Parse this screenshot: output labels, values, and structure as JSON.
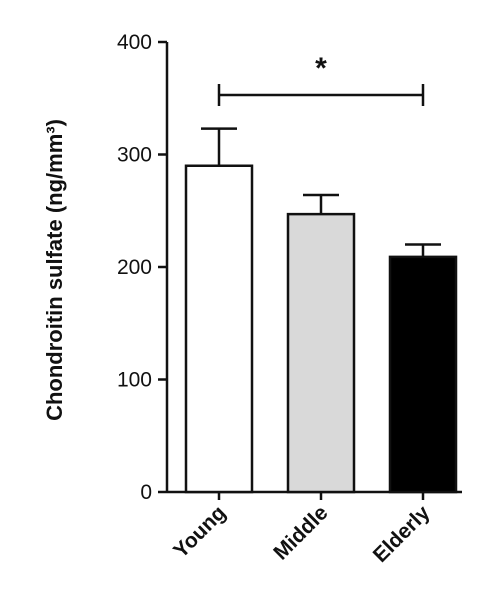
{
  "chart_data": {
    "type": "bar",
    "title": "",
    "xlabel": "",
    "ylabel": "Chondroitin sulfate (ng/mm³)",
    "categories": [
      "Young",
      "Middle",
      "Elderly"
    ],
    "values": [
      290,
      247,
      209
    ],
    "error": [
      33,
      17,
      11
    ],
    "bar_colors": [
      "#ffffff",
      "#d9d9d9",
      "#000000"
    ],
    "ylim": [
      0,
      400
    ],
    "yticks": [
      0,
      100,
      200,
      300,
      400
    ],
    "ytick_labels": [
      "0",
      "100",
      "200",
      "300",
      "400"
    ],
    "grid": false,
    "significance": {
      "from": "Young",
      "to": "Elderly",
      "label": "*"
    }
  }
}
